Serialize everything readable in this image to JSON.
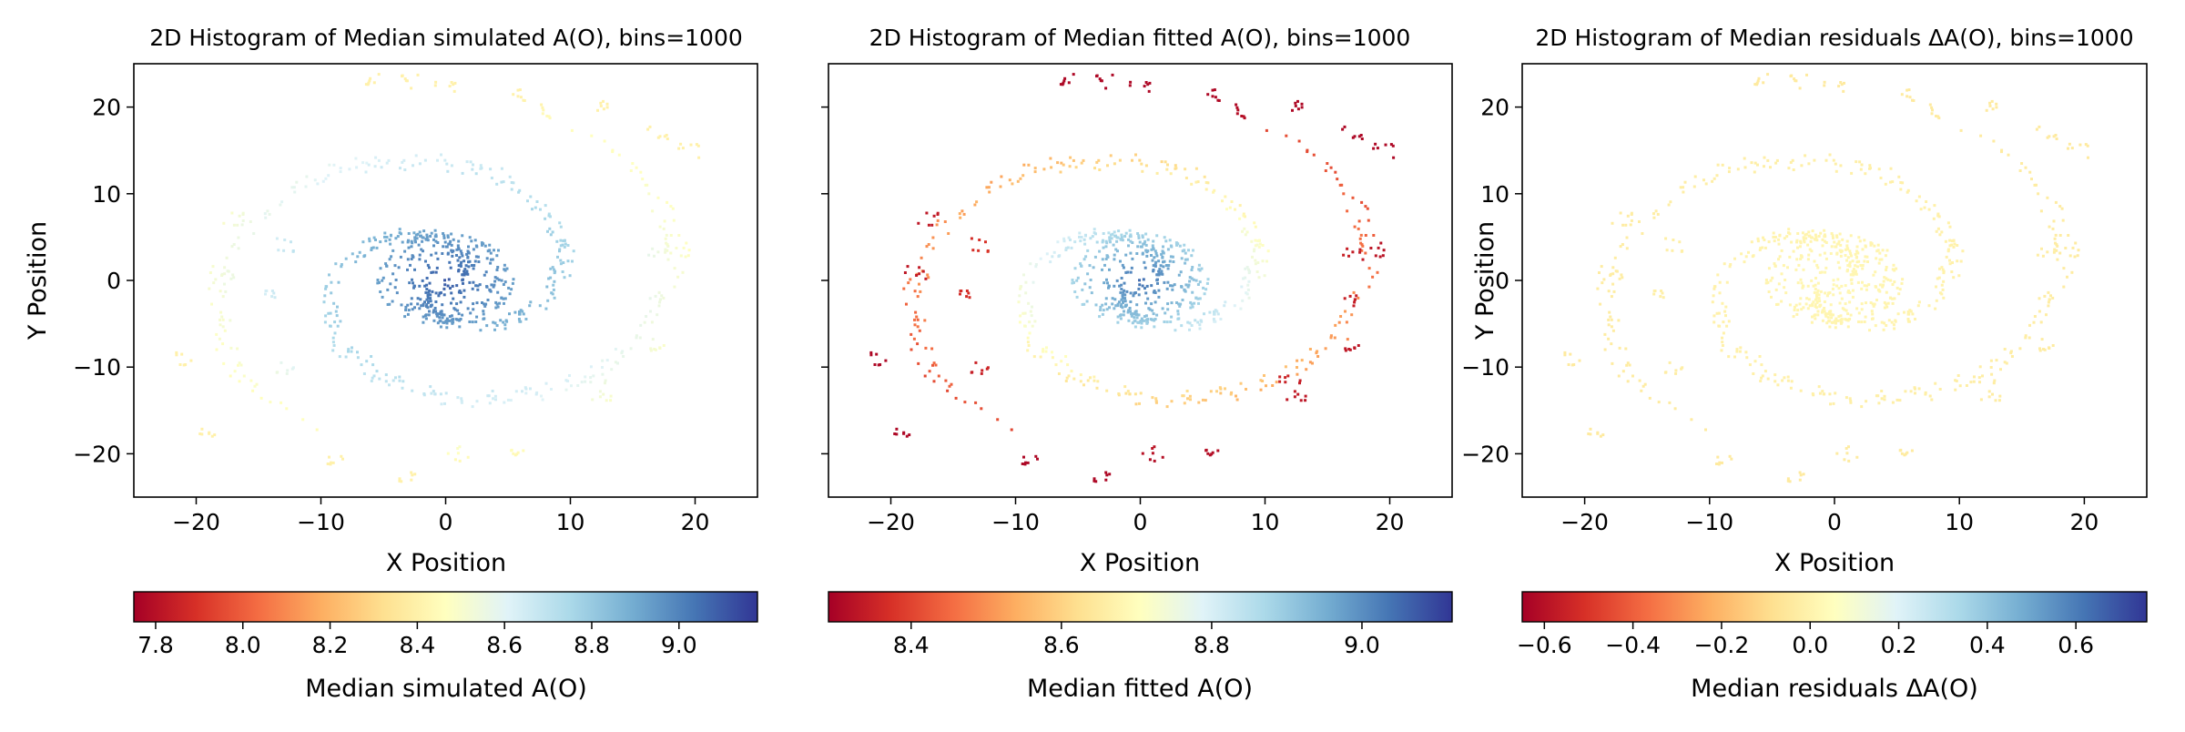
{
  "chart_data": [
    {
      "type": "heatmap",
      "title": "2D Histogram of Median simulated A(O), bins=1000",
      "xlabel": "X Position",
      "ylabel": "Y Position",
      "xlim": [
        -25,
        25
      ],
      "ylim": [
        -25,
        25
      ],
      "x_ticks": [
        -20,
        -10,
        0,
        10,
        20
      ],
      "y_ticks": [
        -20,
        -10,
        0,
        10,
        20
      ],
      "y_tick_labels_shown": true,
      "grid": false,
      "colormap": "RdYlBu",
      "colorbar": {
        "label": "Median simulated A(O)",
        "range": [
          7.75,
          9.18
        ],
        "ticks": [
          7.8,
          8.0,
          8.2,
          8.4,
          8.6,
          8.8,
          9.0
        ],
        "orientation": "horizontal"
      },
      "pattern": {
        "description": "two-armed spiral of points; values highest (dark blue) at the core, decreasing outward to pale yellow",
        "center_value": 9.1,
        "outer_value": 8.4,
        "outer_red_clumps": false
      }
    },
    {
      "type": "heatmap",
      "title": "2D Histogram of Median fitted A(O), bins=1000",
      "xlabel": "X Position",
      "ylabel": "",
      "xlim": [
        -25,
        25
      ],
      "ylim": [
        -25,
        25
      ],
      "x_ticks": [
        -20,
        -10,
        0,
        10,
        20
      ],
      "y_ticks": [
        -20,
        -10,
        0,
        10,
        20
      ],
      "y_tick_labels_shown": false,
      "grid": false,
      "colormap": "RdYlBu",
      "colorbar": {
        "label": "Median fitted A(O)",
        "range": [
          8.29,
          9.12
        ],
        "ticks": [
          8.4,
          8.6,
          8.8,
          9.0
        ],
        "orientation": "horizontal"
      },
      "pattern": {
        "description": "same spiral; dark blue core, orange-to-red clumps at the outer edge",
        "center_value": 9.05,
        "outer_value": 8.35,
        "outer_red_clumps": true
      }
    },
    {
      "type": "heatmap",
      "title": "2D Histogram of Median residuals ΔA(O), bins=1000",
      "xlabel": "X Position",
      "ylabel": "Y Position",
      "xlim": [
        -25,
        25
      ],
      "ylim": [
        -25,
        25
      ],
      "x_ticks": [
        -20,
        -10,
        0,
        10,
        20
      ],
      "y_ticks": [
        -20,
        -10,
        0,
        10,
        20
      ],
      "y_tick_labels_shown": true,
      "grid": false,
      "colormap": "RdYlBu",
      "colorbar": {
        "label": "Median residuals ΔA(O)",
        "range": [
          -0.65,
          0.76
        ],
        "ticks": [
          -0.6,
          -0.4,
          -0.2,
          0.0,
          0.2,
          0.4,
          0.6
        ],
        "orientation": "horizontal"
      },
      "pattern": {
        "description": "same spiral; nearly uniform pale yellow, residuals close to zero everywhere",
        "center_value": 0.02,
        "outer_value": -0.04,
        "outer_red_clumps": false
      }
    }
  ]
}
